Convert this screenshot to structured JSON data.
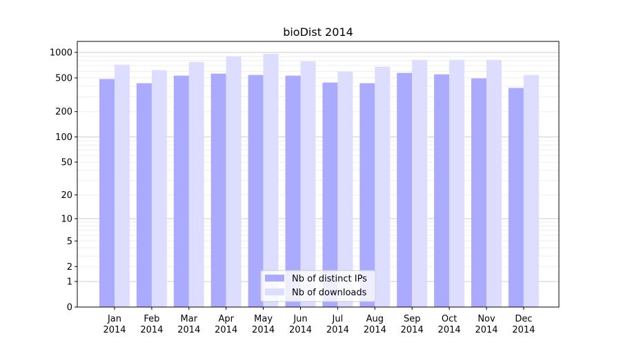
{
  "chart_data": {
    "type": "bar",
    "title": "bioDist 2014",
    "xlabel": "",
    "ylabel": "",
    "yscale": "symlog",
    "ylim": [
      0,
      1300
    ],
    "yticks": [
      0,
      1,
      2,
      5,
      10,
      20,
      50,
      100,
      200,
      500,
      1000
    ],
    "grid": true,
    "legend_placement": "bottom-center",
    "categories": [
      "Jan\n2014",
      "Feb\n2014",
      "Mar\n2014",
      "Apr\n2014",
      "May\n2014",
      "Jun\n2014",
      "Jul\n2014",
      "Aug\n2014",
      "Sep\n2014",
      "Oct\n2014",
      "Nov\n2014",
      "Dec\n2014"
    ],
    "series": [
      {
        "name": "Nb of distinct IPs",
        "color": "#aaaaff",
        "values": [
          485,
          433,
          532,
          562,
          542,
          532,
          441,
          433,
          573,
          551,
          494,
          381
        ]
      },
      {
        "name": "Nb of downloads",
        "color": "#ddddff",
        "values": [
          716,
          617,
          771,
          895,
          963,
          785,
          594,
          677,
          815,
          815,
          815,
          542
        ]
      }
    ]
  }
}
